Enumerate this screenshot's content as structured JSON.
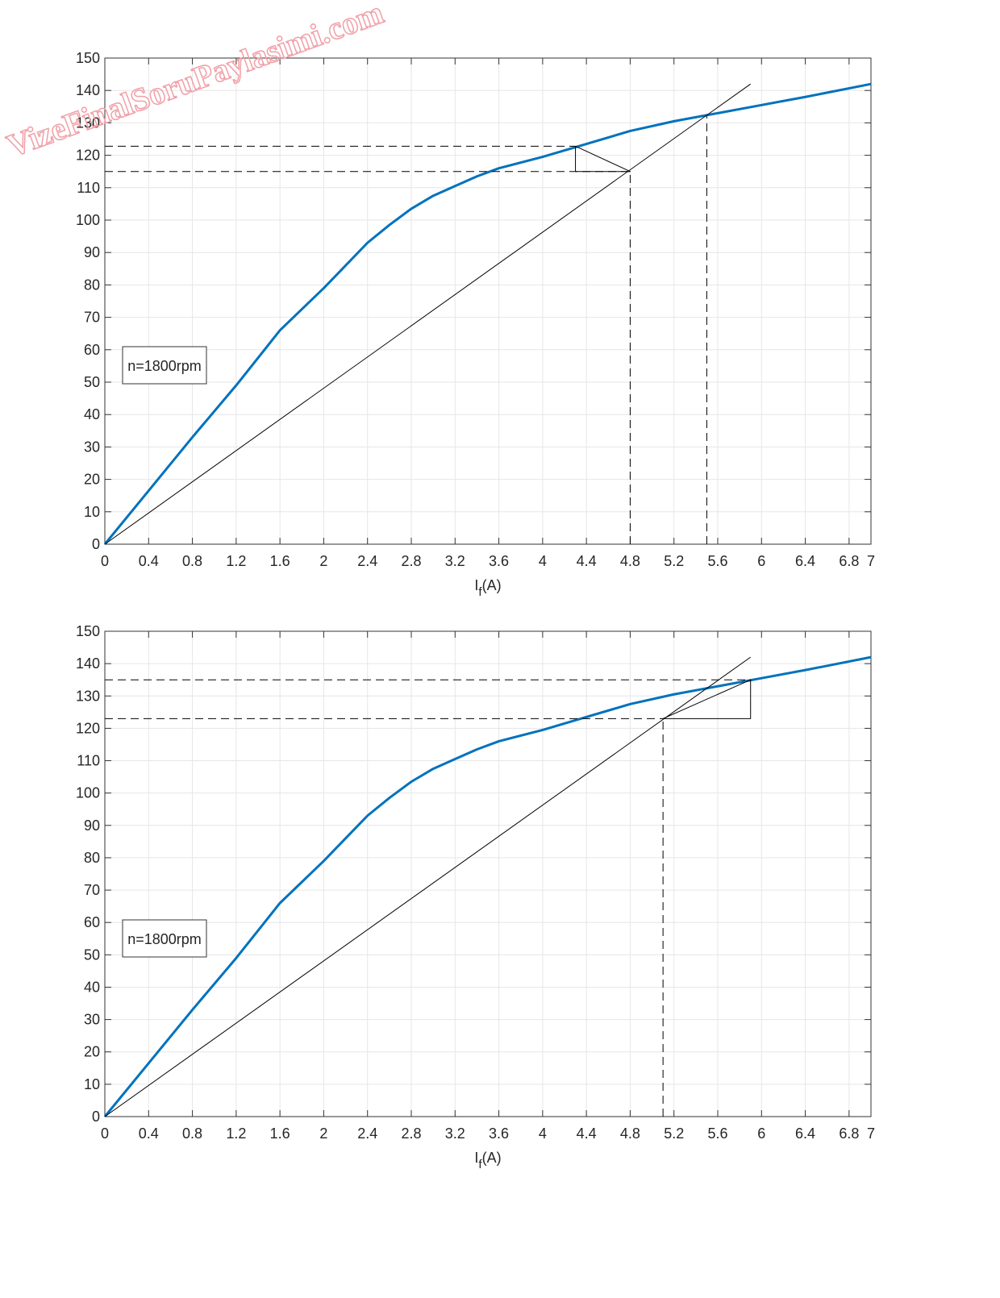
{
  "watermark": "VizeFinalSoruPaylasimi.com",
  "chart_data": [
    {
      "type": "line",
      "annotation": "n=1800rpm",
      "xlabel": {
        "main": "I",
        "sub": "f",
        "unit": "(A)"
      },
      "xlim": [
        0,
        7
      ],
      "xticks": [
        0,
        0.4,
        0.8,
        1.2,
        1.6,
        2,
        2.4,
        2.8,
        3.2,
        3.6,
        4,
        4.4,
        4.8,
        5.2,
        5.6,
        6,
        6.4,
        6.8,
        7
      ],
      "ylim": [
        0,
        150
      ],
      "yticks": [
        0,
        10,
        20,
        30,
        40,
        50,
        60,
        70,
        80,
        90,
        100,
        110,
        120,
        130,
        140,
        150
      ],
      "grid": true,
      "series": [
        {
          "color": "#0072bd",
          "width": 3,
          "dashed": false,
          "x": [
            0,
            0.4,
            0.8,
            1.2,
            1.6,
            2.0,
            2.2,
            2.4,
            2.6,
            2.8,
            3.0,
            3.2,
            3.4,
            3.6,
            4.0,
            4.4,
            4.8,
            5.2,
            5.6,
            6.0,
            6.4,
            7.0
          ],
          "values": [
            0,
            16.5,
            33,
            49,
            66,
            79,
            86,
            93,
            98.5,
            103.5,
            107.5,
            110.5,
            113.5,
            116,
            119.5,
            123.5,
            127.5,
            130.5,
            133,
            135.5,
            138,
            142
          ]
        },
        {
          "color": "#000000",
          "width": 1,
          "dashed": false,
          "x": [
            0,
            5.9
          ],
          "values": [
            0,
            142
          ]
        },
        {
          "color": "#000000",
          "width": 1,
          "dashed": true,
          "x": [
            0,
            4.3
          ],
          "values": [
            122.8,
            122.8
          ]
        },
        {
          "color": "#000000",
          "width": 1,
          "dashed": true,
          "x": [
            0,
            4.8
          ],
          "values": [
            115,
            115
          ]
        },
        {
          "color": "#000000",
          "width": 1,
          "dashed": true,
          "x": [
            4.8,
            4.8
          ],
          "values": [
            0,
            115
          ]
        },
        {
          "color": "#000000",
          "width": 1,
          "dashed": true,
          "x": [
            5.5,
            5.5
          ],
          "values": [
            0,
            132
          ]
        },
        {
          "color": "#000000",
          "width": 1,
          "dashed": false,
          "x": [
            4.3,
            4.3,
            4.8,
            4.3
          ],
          "values": [
            122.8,
            115,
            115,
            122.8
          ]
        }
      ]
    },
    {
      "type": "line",
      "annotation": "n=1800rpm",
      "xlabel": {
        "main": "I",
        "sub": "f",
        "unit": "(A)"
      },
      "xlim": [
        0,
        7
      ],
      "xticks": [
        0,
        0.4,
        0.8,
        1.2,
        1.6,
        2,
        2.4,
        2.8,
        3.2,
        3.6,
        4,
        4.4,
        4.8,
        5.2,
        5.6,
        6,
        6.4,
        6.8,
        7
      ],
      "ylim": [
        0,
        150
      ],
      "yticks": [
        0,
        10,
        20,
        30,
        40,
        50,
        60,
        70,
        80,
        90,
        100,
        110,
        120,
        130,
        140,
        150
      ],
      "grid": true,
      "series": [
        {
          "color": "#0072bd",
          "width": 3,
          "dashed": false,
          "x": [
            0,
            0.4,
            0.8,
            1.2,
            1.6,
            2.0,
            2.2,
            2.4,
            2.6,
            2.8,
            3.0,
            3.2,
            3.4,
            3.6,
            4.0,
            4.4,
            4.8,
            5.2,
            5.6,
            6.0,
            6.4,
            7.0
          ],
          "values": [
            0,
            16.5,
            33,
            49,
            66,
            79,
            86,
            93,
            98.5,
            103.5,
            107.5,
            110.5,
            113.5,
            116,
            119.5,
            123.5,
            127.5,
            130.5,
            133,
            135.5,
            138,
            142
          ]
        },
        {
          "color": "#000000",
          "width": 1,
          "dashed": false,
          "x": [
            0,
            5.9
          ],
          "values": [
            0,
            142
          ]
        },
        {
          "color": "#000000",
          "width": 1,
          "dashed": true,
          "x": [
            0,
            5.9
          ],
          "values": [
            135,
            135
          ]
        },
        {
          "color": "#000000",
          "width": 1,
          "dashed": true,
          "x": [
            0,
            5.1
          ],
          "values": [
            123,
            123
          ]
        },
        {
          "color": "#000000",
          "width": 1,
          "dashed": true,
          "x": [
            5.1,
            5.1
          ],
          "values": [
            0,
            123
          ]
        },
        {
          "color": "#000000",
          "width": 1,
          "dashed": false,
          "x": [
            5.1,
            5.9,
            5.9,
            5.1
          ],
          "values": [
            123,
            123,
            135,
            123
          ]
        }
      ]
    }
  ]
}
